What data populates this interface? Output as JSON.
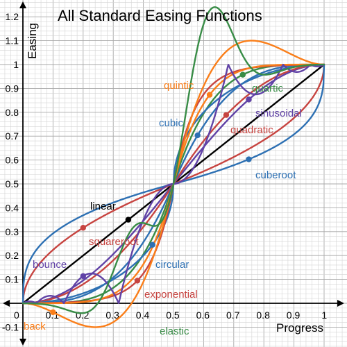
{
  "chart_data": {
    "type": "line",
    "title": "All Standard Easing Functions",
    "xlabel": "Progress",
    "ylabel": "Easing",
    "xlim": [
      0,
      1
    ],
    "ylim": [
      -0.1,
      1.2
    ],
    "grid": true,
    "x_ticks": [
      "0",
      "0.1",
      "0.2",
      "0.3",
      "0.4",
      "0.5",
      "0.6",
      "0.7",
      "0.8",
      "0.9",
      "1"
    ],
    "y_ticks": [
      "-0.1",
      "0.1",
      "0.2",
      "0.3",
      "0.4",
      "0.5",
      "0.6",
      "0.7",
      "0.8",
      "0.9",
      "1",
      "1.1",
      "1.2"
    ],
    "series": [
      {
        "name": "linear",
        "fn": "linear",
        "color": "#000000",
        "marker_x": 0.35
      },
      {
        "name": "quadratic",
        "fn": "quadratic",
        "color": "#c74440",
        "marker_x": 0.675
      },
      {
        "name": "squareroot",
        "fn": "squareroot",
        "color": "#c74440",
        "marker_x": 0.2
      },
      {
        "name": "cubic",
        "fn": "cubic",
        "color": "#2d70b3",
        "marker_x": 0.58
      },
      {
        "name": "cuberoot",
        "fn": "cuberoot",
        "color": "#2d70b3",
        "marker_x": 0.75
      },
      {
        "name": "quartic",
        "fn": "quartic",
        "color": "#388c46",
        "marker_x": 0.73
      },
      {
        "name": "quintic",
        "fn": "quintic",
        "color": "#fa7e19",
        "marker_x": 0.62
      },
      {
        "name": "sinusoidal",
        "fn": "sinusoidal",
        "color": "#6042a6",
        "marker_x": 0.75
      },
      {
        "name": "circular",
        "fn": "circular",
        "color": "#2d70b3",
        "marker_x": 0.43
      },
      {
        "name": "exponential",
        "fn": "exponential",
        "color": "#c74440",
        "marker_x": 0.38
      },
      {
        "name": "bounce",
        "fn": "bounce",
        "color": "#6042a6",
        "marker_x": 0.2
      },
      {
        "name": "back",
        "fn": "back",
        "color": "#fa7e19",
        "marker_x": 0.1
      },
      {
        "name": "elastic",
        "fn": "elastic",
        "color": "#388c46",
        "marker_x": null
      }
    ]
  }
}
